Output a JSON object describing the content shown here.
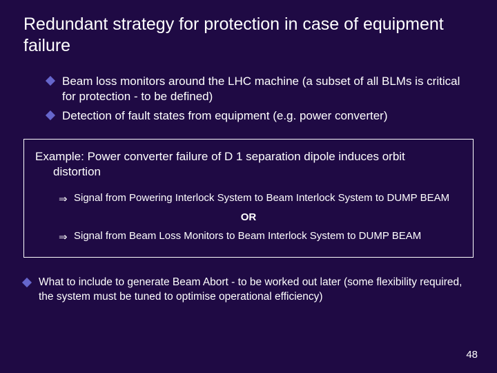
{
  "background_color": "#1f0a44",
  "text_color": "#ffffff",
  "accent_color": "#6666cc",
  "title": "Redundant strategy for protection in case of equipment failure",
  "bullets": [
    "Beam loss monitors around the LHC machine (a subset of all BLMs is critical for protection - to be defined)",
    "Detection of fault states from equipment (e.g. power converter)"
  ],
  "example": {
    "heading_line1": "Example: Power converter failure of D 1 separation dipole induces orbit",
    "heading_line2": "distortion",
    "arrow1": "Signal from Powering Interlock System to Beam Interlock System to DUMP BEAM",
    "or_label": "OR",
    "arrow2": "Signal from Beam Loss Monitors to Beam Interlock System to DUMP BEAM"
  },
  "footer_bullet": "What to include to generate Beam Abort - to be worked out later (some flexibility required, the system must be tuned to optimise operational efficiency)",
  "page_number": "48"
}
